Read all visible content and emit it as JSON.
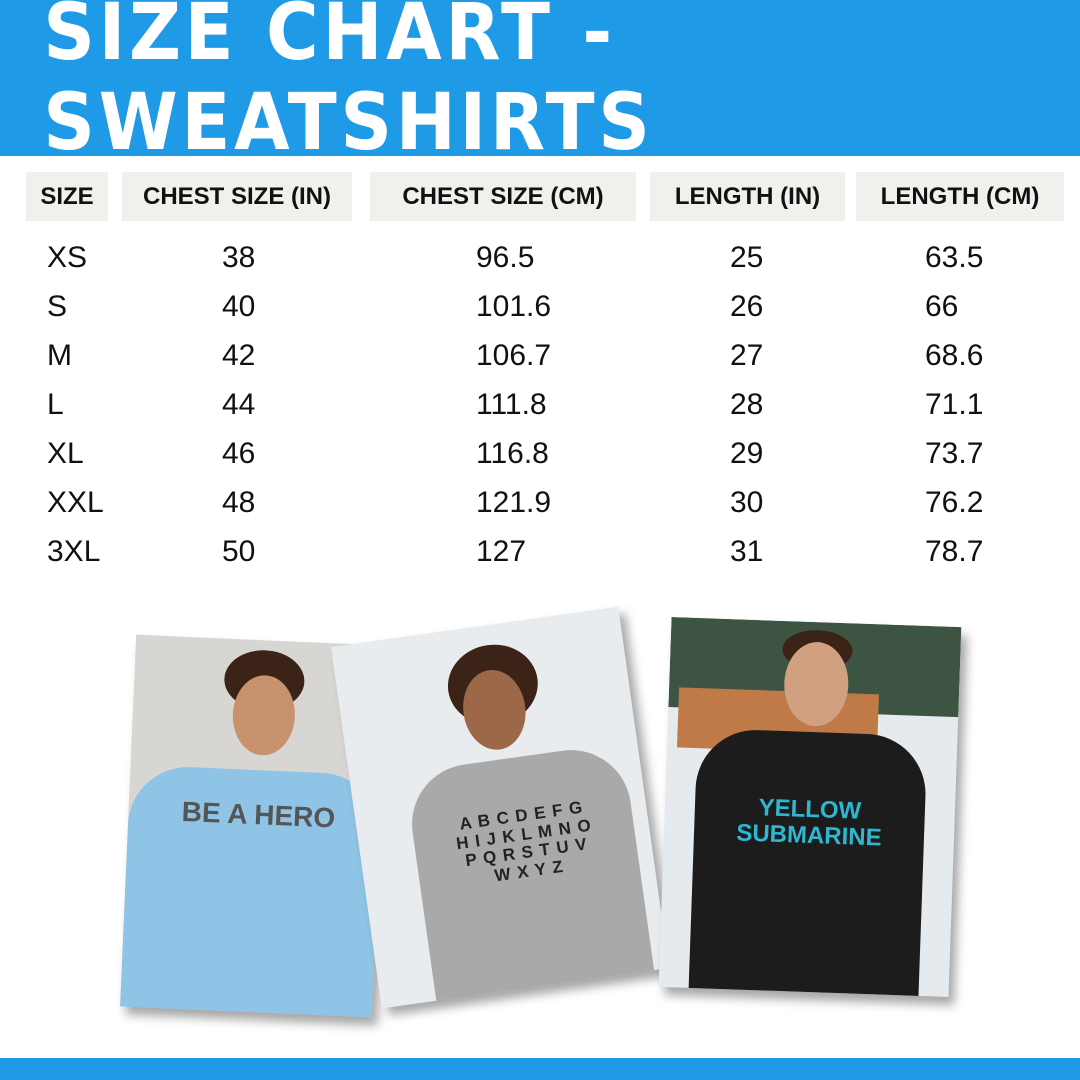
{
  "title": "SIZE CHART - SWEATSHIRTS",
  "colors": {
    "brand": "#1e9ae6",
    "header_cell": "#f1f0ec"
  },
  "table": {
    "headers": [
      "SIZE",
      "CHEST SIZE (IN)",
      "CHEST SIZE (CM)",
      "LENGTH (IN)",
      "LENGTH (CM)"
    ],
    "rows": [
      [
        "XS",
        "38",
        "96.5",
        "25",
        "63.5"
      ],
      [
        "S",
        "40",
        "101.6",
        "26",
        "66"
      ],
      [
        "M",
        "42",
        "106.7",
        "27",
        "68.6"
      ],
      [
        "L",
        "44",
        "111.8",
        "28",
        "71.1"
      ],
      [
        "XL",
        "46",
        "116.8",
        "29",
        "73.7"
      ],
      [
        "XXL",
        "48",
        "121.9",
        "30",
        "76.2"
      ],
      [
        "3XL",
        "50",
        "127",
        "31",
        "78.7"
      ]
    ]
  },
  "photos": [
    {
      "print": "BE A HERO",
      "shirt_color": "#8fc4e6"
    },
    {
      "print": "A B C D E F G H I J K L M N O P Q R S T U V W X Y Z",
      "shirt_color": "#a9a9a9"
    },
    {
      "print": "YELLOW SUBMARINE",
      "shirt_color": "#1c1c1c"
    }
  ]
}
